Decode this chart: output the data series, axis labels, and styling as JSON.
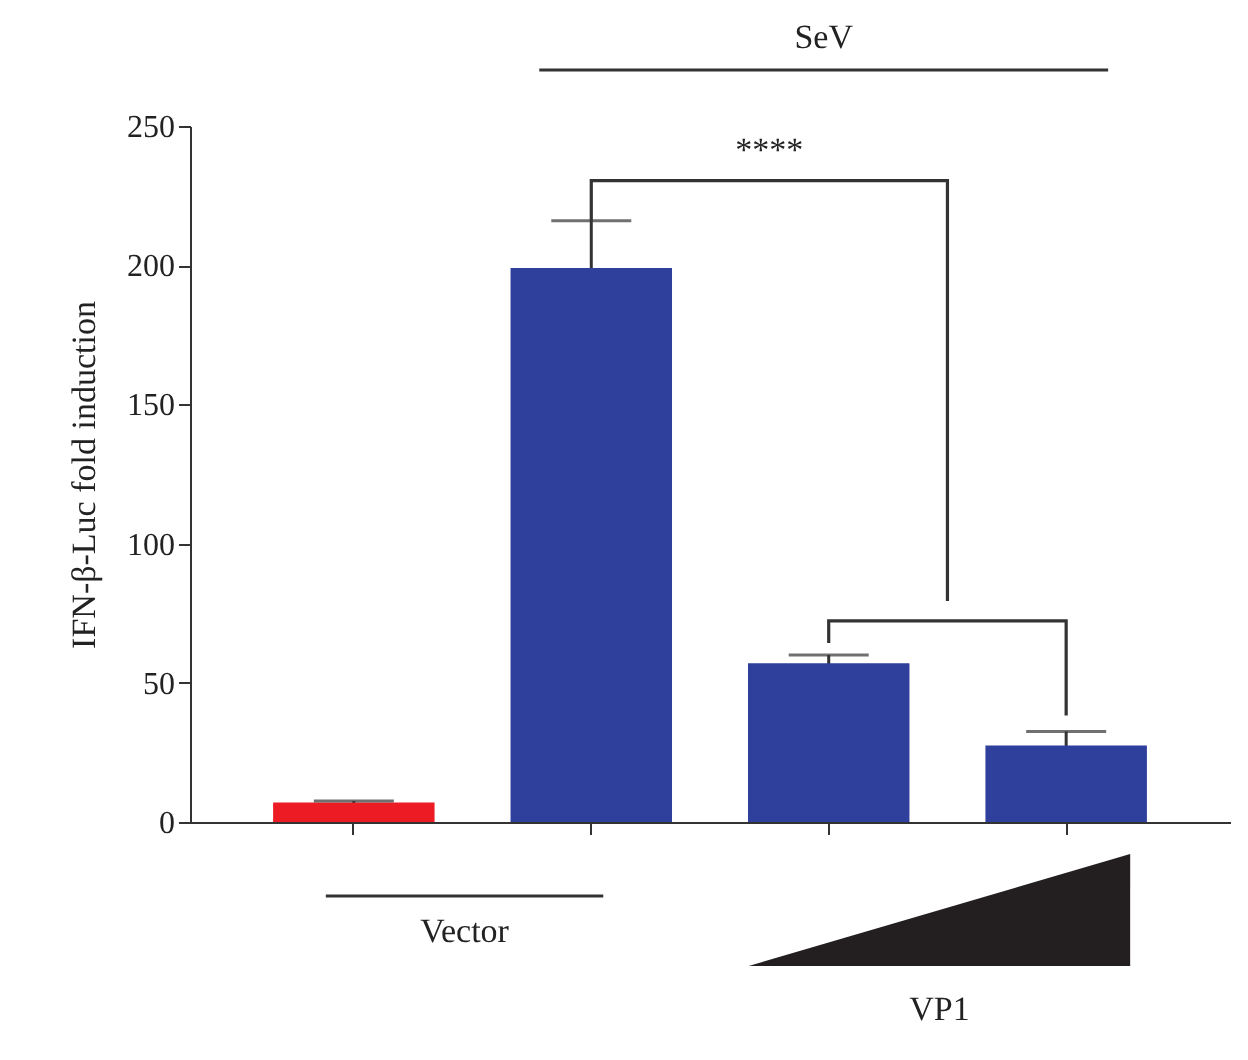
{
  "chart_data": {
    "type": "bar",
    "ylabel": "IFN-β-Luc fold induction",
    "categories": [
      null,
      null,
      null,
      null
    ],
    "values": [
      7,
      199,
      57,
      27.5
    ],
    "errors": [
      0.5,
      17,
      3,
      5
    ],
    "colors": [
      "#ed1c24",
      "#2e3f9c",
      "#2e3f9c",
      "#2e3f9c"
    ],
    "ylim": [
      0,
      250
    ],
    "yticks": [
      0,
      50,
      100,
      150,
      200,
      250
    ],
    "tick_labels": "y",
    "annotations": [
      "SeV",
      "****",
      "Vector",
      "VP1"
    ]
  }
}
